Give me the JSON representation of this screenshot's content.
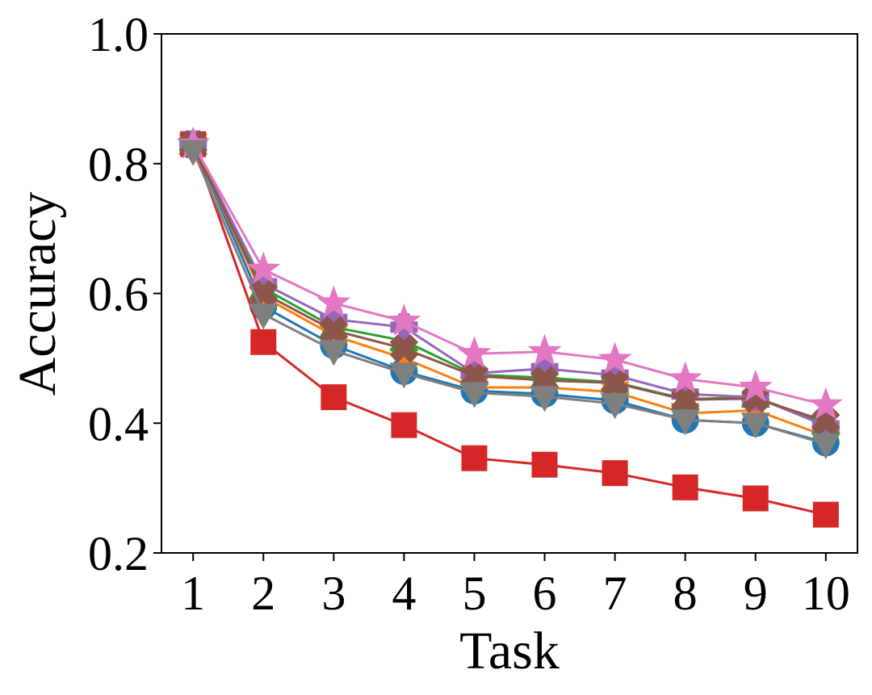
{
  "chart_data": {
    "type": "line",
    "xlabel": "Task",
    "ylabel": "Accuracy",
    "title": "",
    "x": [
      1,
      2,
      3,
      4,
      5,
      6,
      7,
      8,
      9,
      10
    ],
    "xlim": [
      0.55,
      10.45
    ],
    "ylim": [
      0.2,
      1.0
    ],
    "xticks": [
      "1",
      "2",
      "3",
      "4",
      "5",
      "6",
      "7",
      "8",
      "9",
      "10"
    ],
    "yticks": [
      "0.2",
      "0.4",
      "0.6",
      "0.8",
      "1.0"
    ],
    "yticks_values": [
      0.2,
      0.4,
      0.6,
      0.8,
      1.0
    ],
    "grid": false,
    "legend": "none",
    "series": [
      {
        "color": "#1f77b4",
        "marker": "circle",
        "values": [
          0.83,
          0.58,
          0.52,
          0.48,
          0.45,
          0.445,
          0.435,
          0.405,
          0.4,
          0.37
        ]
      },
      {
        "color": "#ff7f0e",
        "marker": "triangle-down",
        "values": [
          0.83,
          0.595,
          0.535,
          0.5,
          0.455,
          0.455,
          0.448,
          0.415,
          0.42,
          0.38
        ]
      },
      {
        "color": "#2ca02c",
        "marker": "triangle-up",
        "values": [
          0.83,
          0.608,
          0.548,
          0.527,
          0.475,
          0.47,
          0.463,
          0.437,
          0.44,
          0.4
        ]
      },
      {
        "color": "#d62728",
        "marker": "square",
        "values": [
          0.83,
          0.525,
          0.44,
          0.397,
          0.346,
          0.336,
          0.323,
          0.301,
          0.284,
          0.259
        ]
      },
      {
        "color": "#9467bd",
        "marker": "plus",
        "values": [
          0.83,
          0.615,
          0.56,
          0.548,
          0.477,
          0.484,
          0.474,
          0.445,
          0.44,
          0.396
        ]
      },
      {
        "color": "#8c564b",
        "marker": "x",
        "values": [
          0.83,
          0.6,
          0.543,
          0.515,
          0.473,
          0.466,
          0.462,
          0.436,
          0.438,
          0.403
        ]
      },
      {
        "color": "#e377c2",
        "marker": "star",
        "values": [
          0.83,
          0.637,
          0.585,
          0.557,
          0.507,
          0.51,
          0.498,
          0.468,
          0.455,
          0.428
        ]
      },
      {
        "color": "#7f7f7f",
        "marker": "triangle-down",
        "values": [
          0.82,
          0.568,
          0.512,
          0.477,
          0.447,
          0.441,
          0.43,
          0.405,
          0.4,
          0.368
        ]
      }
    ]
  }
}
